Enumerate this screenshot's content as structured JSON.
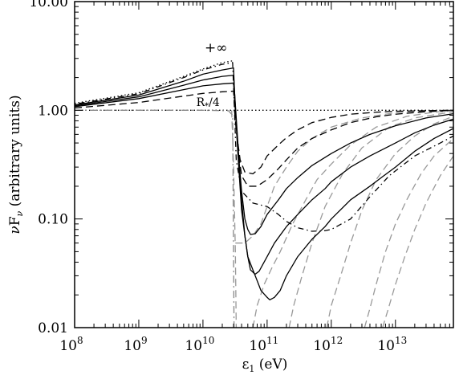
{
  "chart_data": {
    "type": "line",
    "x_scale": "log",
    "y_scale": "log",
    "xlim": [
      100000000.0,
      80000000000000.0
    ],
    "ylim": [
      0.01,
      10
    ],
    "grid": false,
    "legend": "none",
    "xlabel": {
      "main": "ε",
      "sub": "1",
      "rest": " (eV)"
    },
    "ylabel": {
      "prefix": "ν",
      "main": "F",
      "sub": "ν",
      "rest": " (arbitrary units)"
    },
    "x_ticks": [
      {
        "value": 100000000.0,
        "base": "10",
        "exp": "8"
      },
      {
        "value": 1000000000.0,
        "base": "10",
        "exp": "9"
      },
      {
        "value": 10000000000.0,
        "base": "10",
        "exp": "10"
      },
      {
        "value": 100000000000.0,
        "base": "10",
        "exp": "11"
      },
      {
        "value": 1000000000000.0,
        "base": "10",
        "exp": "12"
      },
      {
        "value": 10000000000000.0,
        "base": "10",
        "exp": "13"
      }
    ],
    "y_ticks": [
      {
        "value": 10,
        "label": "10.00"
      },
      {
        "value": 1,
        "label": "1.00"
      },
      {
        "value": 0.1,
        "label": "0.10"
      },
      {
        "value": 0.01,
        "label": "0.01"
      }
    ],
    "annotations": [
      {
        "text": "+∞",
        "x": 16000000000.0,
        "y": 3.2
      },
      {
        "text": "R",
        "sub": "*",
        "rest": "/4",
        "x": 14000000000.0,
        "y": 1.06
      }
    ],
    "series": [
      {
        "style": "dotted",
        "color": "#000000",
        "points": [
          [
            100000000.0,
            1.0
          ],
          [
            80000000000000.0,
            1.0
          ]
        ]
      },
      {
        "style": "dotdash",
        "color": "#888888",
        "points": [
          [
            100000000.0,
            1.0
          ],
          [
            1000000000.0,
            1.0
          ],
          [
            10000000000.0,
            1.0
          ],
          [
            25000000000.0,
            0.99
          ],
          [
            29000000000.0,
            0.9
          ],
          [
            30500000000.0,
            0.01
          ]
        ]
      },
      {
        "style": "dashed",
        "color": "#999999",
        "points": [
          [
            28000000000.0,
            1.0
          ],
          [
            30000000000.0,
            0.3
          ],
          [
            32000000000.0,
            0.05
          ],
          [
            33000000000.0,
            0.01
          ]
        ]
      },
      {
        "style": "dashed",
        "color": "#999999",
        "points": [
          [
            32000000000.0,
            0.06
          ],
          [
            45000000000.0,
            0.06
          ],
          [
            60000000000.0,
            0.07
          ],
          [
            80000000000.0,
            0.09
          ],
          [
            100000000000.0,
            0.13
          ],
          [
            130000000000.0,
            0.2
          ],
          [
            200000000000.0,
            0.3
          ],
          [
            300000000000.0,
            0.42
          ],
          [
            500000000000.0,
            0.55
          ],
          [
            1000000000000.0,
            0.7
          ],
          [
            3000000000000.0,
            0.85
          ],
          [
            10000000000000.0,
            0.95
          ],
          [
            30000000000000.0,
            0.98
          ],
          [
            80000000000000.0,
            1.0
          ]
        ]
      },
      {
        "style": "dashed",
        "color": "#999999",
        "points": [
          [
            60000000000.0,
            0.01
          ],
          [
            70000000000.0,
            0.016
          ],
          [
            90000000000.0,
            0.025
          ],
          [
            120000000000.0,
            0.036
          ],
          [
            160000000000.0,
            0.05
          ],
          [
            250000000000.0,
            0.09
          ],
          [
            400000000000.0,
            0.15
          ],
          [
            600000000000.0,
            0.23
          ],
          [
            1000000000000.0,
            0.32
          ],
          [
            2000000000000.0,
            0.48
          ],
          [
            5000000000000.0,
            0.7
          ],
          [
            15000000000000.0,
            0.88
          ],
          [
            40000000000000.0,
            0.96
          ],
          [
            80000000000000.0,
            0.99
          ]
        ]
      },
      {
        "style": "dashed",
        "color": "#999999",
        "points": [
          [
            220000000000.0,
            0.01
          ],
          [
            260000000000.0,
            0.016
          ],
          [
            350000000000.0,
            0.03
          ],
          [
            500000000000.0,
            0.06
          ],
          [
            800000000000.0,
            0.13
          ],
          [
            1500000000000.0,
            0.26
          ],
          [
            3000000000000.0,
            0.45
          ],
          [
            8000000000000.0,
            0.7
          ],
          [
            20000000000000.0,
            0.85
          ],
          [
            80000000000000.0,
            0.97
          ]
        ]
      },
      {
        "style": "dashed",
        "color": "#999999",
        "points": [
          [
            850000000000.0,
            0.01
          ],
          [
            1000000000000.0,
            0.016
          ],
          [
            1400000000000.0,
            0.03
          ],
          [
            2000000000000.0,
            0.06
          ],
          [
            3000000000000.0,
            0.12
          ],
          [
            5000000000000.0,
            0.23
          ],
          [
            10000000000000.0,
            0.4
          ],
          [
            20000000000000.0,
            0.58
          ],
          [
            40000000000000.0,
            0.75
          ],
          [
            80000000000000.0,
            0.88
          ]
        ]
      },
      {
        "style": "dashed",
        "color": "#999999",
        "points": [
          [
            3300000000000.0,
            0.01
          ],
          [
            4000000000000.0,
            0.015
          ],
          [
            5000000000000.0,
            0.025
          ],
          [
            7000000000000.0,
            0.05
          ],
          [
            10000000000000.0,
            0.09
          ],
          [
            15000000000000.0,
            0.15
          ],
          [
            25000000000000.0,
            0.26
          ],
          [
            40000000000000.0,
            0.38
          ],
          [
            80000000000000.0,
            0.55
          ]
        ]
      },
      {
        "style": "dashed",
        "color": "#999999",
        "points": [
          [
            6300000000000.0,
            0.01
          ],
          [
            7500000000000.0,
            0.014
          ],
          [
            10000000000000.0,
            0.025
          ],
          [
            14000000000000.0,
            0.045
          ],
          [
            20000000000000.0,
            0.08
          ],
          [
            30000000000000.0,
            0.14
          ],
          [
            50000000000000.0,
            0.25
          ],
          [
            80000000000000.0,
            0.38
          ]
        ]
      },
      {
        "style": "dotted",
        "color": "#000000",
        "points": [
          [
            100000000.0,
            1.16
          ],
          [
            1000000000.0,
            1.45
          ],
          [
            5000000000.0,
            2.05
          ],
          [
            10000000000.0,
            2.4
          ],
          [
            20000000000.0,
            2.75
          ],
          [
            29000000000.0,
            2.85
          ]
        ]
      },
      {
        "style": "dashdot",
        "color": "#000000",
        "points": [
          [
            100000000.0,
            1.14
          ],
          [
            1000000000.0,
            1.42
          ],
          [
            5000000000.0,
            2.0
          ],
          [
            10000000000.0,
            2.35
          ],
          [
            20000000000.0,
            2.65
          ],
          [
            29000000000.0,
            2.75
          ],
          [
            31000000000.0,
            1.0
          ],
          [
            33000000000.0,
            0.35
          ],
          [
            40000000000.0,
            0.18
          ],
          [
            60000000000.0,
            0.14
          ],
          [
            100000000000.0,
            0.13
          ],
          [
            150000000000.0,
            0.11
          ],
          [
            200000000000.0,
            0.095
          ],
          [
            300000000000.0,
            0.083
          ],
          [
            500000000000.0,
            0.077
          ],
          [
            800000000000.0,
            0.078
          ],
          [
            1000000000000.0,
            0.08
          ],
          [
            2000000000000.0,
            0.1
          ],
          [
            4000000000000.0,
            0.16
          ],
          [
            8000000000000.0,
            0.25
          ],
          [
            20000000000000.0,
            0.38
          ],
          [
            50000000000000.0,
            0.5
          ],
          [
            80000000000000.0,
            0.58
          ]
        ]
      },
      {
        "style": "solid",
        "color": "#000000",
        "points": [
          [
            100000000.0,
            1.12
          ],
          [
            1000000000.0,
            1.38
          ],
          [
            5000000000.0,
            1.85
          ],
          [
            10000000000.0,
            2.15
          ],
          [
            20000000000.0,
            2.35
          ],
          [
            30000000000.0,
            2.45
          ],
          [
            31000000000.0,
            1.5
          ],
          [
            35000000000.0,
            0.4
          ],
          [
            40000000000.0,
            0.12
          ],
          [
            45000000000.0,
            0.07
          ],
          [
            50000000000.0,
            0.045
          ],
          [
            60000000000.0,
            0.034
          ],
          [
            70000000000.0,
            0.027
          ],
          [
            80000000000.0,
            0.022
          ],
          [
            100000000000.0,
            0.019
          ],
          [
            110000000000.0,
            0.018
          ],
          [
            130000000000.0,
            0.019
          ],
          [
            160000000000.0,
            0.022
          ],
          [
            200000000000.0,
            0.03
          ],
          [
            300000000000.0,
            0.045
          ],
          [
            500000000000.0,
            0.065
          ],
          [
            800000000000.0,
            0.085
          ],
          [
            1000000000000.0,
            0.1
          ],
          [
            2000000000000.0,
            0.15
          ],
          [
            4000000000000.0,
            0.2
          ],
          [
            6000000000000.0,
            0.24
          ],
          [
            10000000000000.0,
            0.3
          ],
          [
            20000000000000.0,
            0.42
          ],
          [
            40000000000000.0,
            0.55
          ],
          [
            80000000000000.0,
            0.68
          ]
        ]
      },
      {
        "style": "solid",
        "color": "#000000",
        "points": [
          [
            100000000.0,
            1.1
          ],
          [
            1000000000.0,
            1.33
          ],
          [
            5000000000.0,
            1.7
          ],
          [
            10000000000.0,
            1.9
          ],
          [
            20000000000.0,
            2.05
          ],
          [
            30000000000.0,
            2.1
          ],
          [
            31000000000.0,
            1.5
          ],
          [
            35000000000.0,
            0.5
          ],
          [
            40000000000.0,
            0.15
          ],
          [
            45000000000.0,
            0.07
          ],
          [
            50000000000.0,
            0.045
          ],
          [
            55000000000.0,
            0.034
          ],
          [
            65000000000.0,
            0.031
          ],
          [
            75000000000.0,
            0.033
          ],
          [
            100000000000.0,
            0.045
          ],
          [
            130000000000.0,
            0.06
          ],
          [
            200000000000.0,
            0.085
          ],
          [
            300000000000.0,
            0.11
          ],
          [
            500000000000.0,
            0.15
          ],
          [
            800000000000.0,
            0.19
          ],
          [
            1000000000000.0,
            0.22
          ],
          [
            2000000000000.0,
            0.3
          ],
          [
            4000000000000.0,
            0.38
          ],
          [
            10000000000000.0,
            0.5
          ],
          [
            20000000000000.0,
            0.62
          ],
          [
            40000000000000.0,
            0.73
          ],
          [
            80000000000000.0,
            0.83
          ]
        ]
      },
      {
        "style": "solid",
        "color": "#000000",
        "points": [
          [
            100000000.0,
            1.08
          ],
          [
            1000000000.0,
            1.28
          ],
          [
            5000000000.0,
            1.55
          ],
          [
            10000000000.0,
            1.68
          ],
          [
            20000000000.0,
            1.75
          ],
          [
            30000000000.0,
            1.78
          ],
          [
            31000000000.0,
            1.3
          ],
          [
            35000000000.0,
            0.45
          ],
          [
            40000000000.0,
            0.18
          ],
          [
            45000000000.0,
            0.1
          ],
          [
            50000000000.0,
            0.08
          ],
          [
            55000000000.0,
            0.072
          ],
          [
            65000000000.0,
            0.073
          ],
          [
            80000000000.0,
            0.085
          ],
          [
            100000000000.0,
            0.11
          ],
          [
            150000000000.0,
            0.15
          ],
          [
            200000000000.0,
            0.19
          ],
          [
            300000000000.0,
            0.24
          ],
          [
            500000000000.0,
            0.31
          ],
          [
            1000000000000.0,
            0.4
          ],
          [
            2000000000000.0,
            0.5
          ],
          [
            4000000000000.0,
            0.6
          ],
          [
            10000000000000.0,
            0.72
          ],
          [
            30000000000000.0,
            0.85
          ],
          [
            80000000000000.0,
            0.93
          ]
        ]
      },
      {
        "style": "dashed",
        "color": "#000000",
        "points": [
          [
            100000000.0,
            1.05
          ],
          [
            1000000000.0,
            1.18
          ],
          [
            5000000000.0,
            1.35
          ],
          [
            10000000000.0,
            1.43
          ],
          [
            20000000000.0,
            1.48
          ],
          [
            30000000000.0,
            1.5
          ],
          [
            31000000000.0,
            1.1
          ],
          [
            35000000000.0,
            0.45
          ],
          [
            40000000000.0,
            0.25
          ],
          [
            50000000000.0,
            0.2
          ],
          [
            70000000000.0,
            0.2
          ],
          [
            100000000000.0,
            0.23
          ],
          [
            150000000000.0,
            0.29
          ],
          [
            200000000000.0,
            0.35
          ],
          [
            300000000000.0,
            0.45
          ],
          [
            500000000000.0,
            0.55
          ],
          [
            1000000000000.0,
            0.66
          ],
          [
            2000000000000.0,
            0.77
          ],
          [
            5000000000000.0,
            0.87
          ],
          [
            10000000000000.0,
            0.92
          ],
          [
            30000000000000.0,
            0.97
          ],
          [
            80000000000000.0,
            1.0
          ]
        ]
      },
      {
        "style": "dashed",
        "color": "#000000",
        "points": [
          [
            31000000000.0,
            1.0
          ],
          [
            33000000000.0,
            0.65
          ],
          [
            38000000000.0,
            0.35
          ],
          [
            45000000000.0,
            0.27
          ],
          [
            60000000000.0,
            0.26
          ],
          [
            80000000000.0,
            0.3
          ],
          [
            100000000000.0,
            0.38
          ],
          [
            150000000000.0,
            0.48
          ],
          [
            200000000000.0,
            0.56
          ],
          [
            300000000000.0,
            0.66
          ],
          [
            500000000000.0,
            0.77
          ],
          [
            1000000000000.0,
            0.86
          ],
          [
            2000000000000.0,
            0.92
          ],
          [
            5000000000000.0,
            0.96
          ],
          [
            10000000000000.0,
            0.98
          ],
          [
            80000000000000.0,
            1.0
          ]
        ]
      }
    ]
  }
}
